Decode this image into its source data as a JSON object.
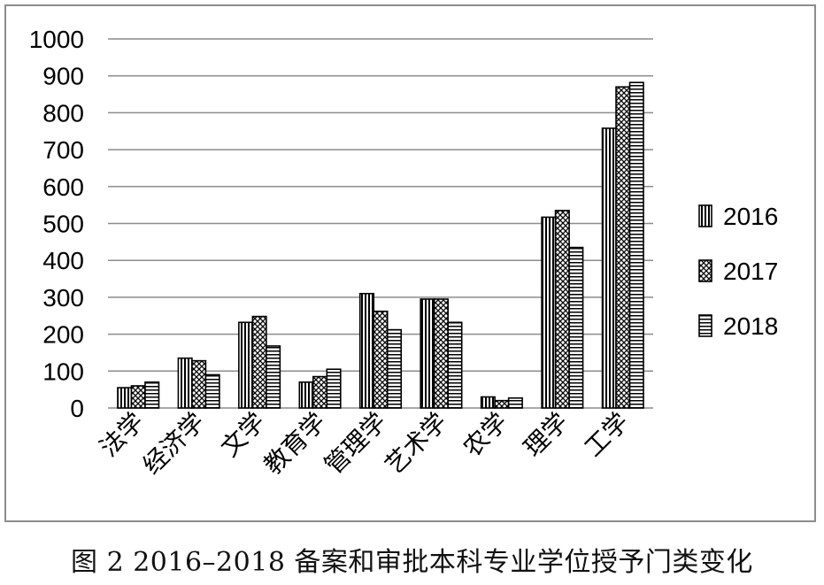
{
  "caption": "图 2 2016–2018 备案和审批本科专业学位授予门类变化",
  "chart_data": {
    "type": "bar",
    "categories": [
      "法学",
      "经济学",
      "文学",
      "教育学",
      "管理学",
      "艺术学",
      "农学",
      "理学",
      "工学"
    ],
    "series": [
      {
        "name": "2016",
        "pattern": "vertical-stripes",
        "values": [
          55,
          135,
          232,
          70,
          310,
          295,
          30,
          517,
          758
        ]
      },
      {
        "name": "2017",
        "pattern": "crosshatch",
        "values": [
          60,
          128,
          248,
          85,
          262,
          295,
          20,
          535,
          870
        ]
      },
      {
        "name": "2018",
        "pattern": "horizontal-stripes",
        "values": [
          70,
          90,
          168,
          105,
          212,
          232,
          27,
          435,
          882
        ]
      }
    ],
    "ylim": [
      0,
      1000
    ],
    "yticks": [
      "0",
      "100",
      "200",
      "300",
      "400",
      "500",
      "600",
      "700",
      "800",
      "900",
      "1000"
    ],
    "grid": true,
    "legend_position": "right",
    "colors": {
      "bar_stroke": "#000000",
      "grid": "#8c8c8c",
      "frame": "#8c8c8c"
    }
  }
}
